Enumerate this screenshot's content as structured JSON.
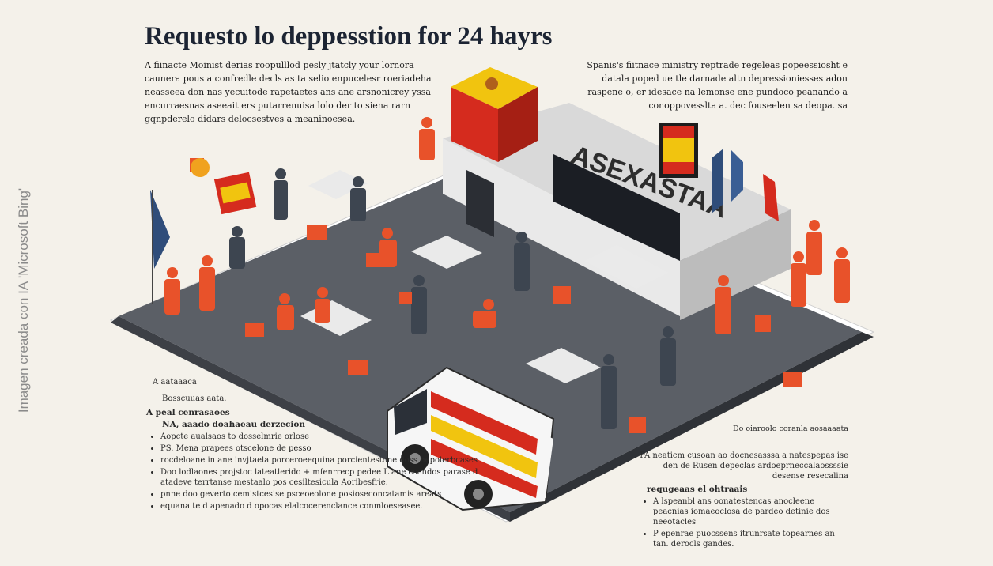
{
  "title": "Requesto lo deppesstion for 24 hayrs",
  "intro_left": "A fiinacte Moinist derias roopulllod pesly jtatcly your lornora caunera pous a confredle decls as ta selio enpucelesr roeriadeha neasseea don nas yecuitode rapetaetes ans ane arsnonicrey yssa encurraesnas aseeait ers putarrenuisa lolo der to siena rarn gqnpderelo didars delocsestves a meaninoesea.",
  "intro_right": "Spanis's fiitnace ministry reptrade regeleas popeessiosht e datala poped ue tle darnade altn depressioniesses adon raspene o, er idesace na lemonse ene pundoco peanando a conoppovesslta a.  dec fouseelen sa deopa. sa",
  "building_sign": "ASEXASTAA",
  "watermark": "Imagen creada con IA 'Microsoft Bing'",
  "left_notes": {
    "marker": "A aataaaca",
    "sub": "Bosscuuas aata.",
    "heading": "A peal cenrasaoes",
    "subheading": "NA, aaado doahaeau derzecion",
    "items": [
      "Aopcte aualsaos to dosselmrie orlose",
      "PS. Mena prapees otscelone de pesso",
      "rocdeloane in ane invjtaela porceroeequina porcientestone doss nepolerbcases",
      "Doo lodlaones projstoc lateatlerido + mfenrrecp pedee L ane esendos parase d atadeve terrtanse mestaalo pos cesiltesicula Aoribesfrie.",
      "pnne doo geverto cemistcesise psceoeolone posioseconcatamis areats",
      "equana te d apenado d opocas elalcocerenclance conmloeseasee."
    ]
  },
  "right_notes": {
    "heading": "Do oiaroolo coranla aosaaaata",
    "body": "PA neaticm cusoan ao docnesasssa a natespepas ise den de Rusen depeclas ardoeprneccalaossssie desense resecalina",
    "subheading": "requgeaas el ohtraais",
    "items": [
      "A lspeanbl ans oonatestencas anocleene peacnias iomaeoclosa de pardeo detinie dos neeotacles",
      "P epenrae puocssens itrunrsate topearnes an tan. derocls gandes."
    ]
  },
  "colors": {
    "accent": "#e8522a",
    "floor": "#5b5f66",
    "navy": "#1c2433"
  }
}
